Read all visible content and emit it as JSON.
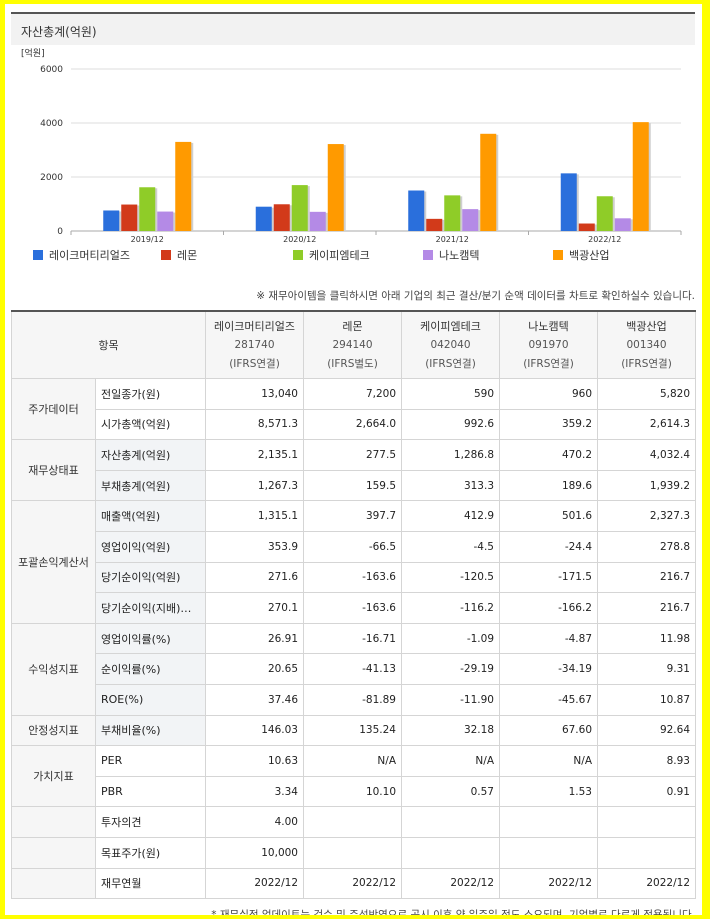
{
  "chart_title": "자산총계(억원)",
  "chart_data": {
    "type": "bar",
    "unit_label": "[억원]",
    "categories": [
      "2019/12",
      "2020/12",
      "2021/12",
      "2022/12"
    ],
    "ylim": [
      0,
      6000
    ],
    "yticks": [
      "6000",
      "4000",
      "2000",
      "0"
    ],
    "series": [
      {
        "name": "레이크머티리얼즈",
        "color": "#2a6fdc",
        "values": [
          760,
          900,
          1500,
          2135
        ]
      },
      {
        "name": "레몬",
        "color": "#d23a1a",
        "values": [
          980,
          990,
          450,
          277
        ]
      },
      {
        "name": "케이피엠테크",
        "color": "#8fcc28",
        "values": [
          1620,
          1700,
          1320,
          1287
        ]
      },
      {
        "name": "나노캠텍",
        "color": "#b48ae6",
        "values": [
          720,
          710,
          810,
          470
        ]
      },
      {
        "name": "백광산업",
        "color": "#ff9a00",
        "values": [
          3300,
          3220,
          3600,
          4032
        ]
      }
    ]
  },
  "notice": "※ 재무아이템을 클릭하시면 아래 기업의 최근 결산/분기 순액 데이터를 차트로 확인하실수 있습니다.",
  "table": {
    "item_header": "항목",
    "companies": [
      {
        "name": "레이크머티리얼즈",
        "code": "281740",
        "type": "(IFRS연결)"
      },
      {
        "name": "레몬",
        "code": "294140",
        "type": "(IFRS별도)"
      },
      {
        "name": "케이피엠테크",
        "code": "042040",
        "type": "(IFRS연결)"
      },
      {
        "name": "나노캠텍",
        "code": "091970",
        "type": "(IFRS연결)"
      },
      {
        "name": "백광산업",
        "code": "001340",
        "type": "(IFRS연결)"
      }
    ],
    "rows": [
      {
        "group": "주가데이터",
        "span": 2,
        "label": "전일종가(원)",
        "values": [
          "13,040",
          "7,200",
          "590",
          "960",
          "5,820"
        ]
      },
      {
        "label": "시가총액(억원)",
        "values": [
          "8,571.3",
          "2,664.0",
          "992.6",
          "359.2",
          "2,614.3"
        ]
      },
      {
        "group": "재무상태표",
        "span": 2,
        "label": "자산총계(억원)",
        "shaded": true,
        "values": [
          "2,135.1",
          "277.5",
          "1,286.8",
          "470.2",
          "4,032.4"
        ]
      },
      {
        "label": "부채총계(억원)",
        "shaded": true,
        "values": [
          "1,267.3",
          "159.5",
          "313.3",
          "189.6",
          "1,939.2"
        ]
      },
      {
        "group": "포괄손익계산서",
        "span": 4,
        "label": "매출액(억원)",
        "shaded": true,
        "values": [
          "1,315.1",
          "397.7",
          "412.9",
          "501.6",
          "2,327.3"
        ]
      },
      {
        "label": "영업이익(억원)",
        "shaded": true,
        "values": [
          "353.9",
          "-66.5",
          "-4.5",
          "-24.4",
          "278.8"
        ]
      },
      {
        "label": "당기순이익(억원)",
        "shaded": true,
        "values": [
          "271.6",
          "-163.6",
          "-120.5",
          "-171.5",
          "216.7"
        ]
      },
      {
        "label": "당기순이익(지배)…",
        "shaded": true,
        "values": [
          "270.1",
          "-163.6",
          "-116.2",
          "-166.2",
          "216.7"
        ]
      },
      {
        "group": "수익성지표",
        "span": 3,
        "label": "영업이익률(%)",
        "shaded": true,
        "values": [
          "26.91",
          "-16.71",
          "-1.09",
          "-4.87",
          "11.98"
        ]
      },
      {
        "label": "순이익률(%)",
        "shaded": true,
        "values": [
          "20.65",
          "-41.13",
          "-29.19",
          "-34.19",
          "9.31"
        ]
      },
      {
        "label": "ROE(%)",
        "shaded": true,
        "values": [
          "37.46",
          "-81.89",
          "-11.90",
          "-45.67",
          "10.87"
        ]
      },
      {
        "group": "안정성지표",
        "span": 1,
        "label": "부채비율(%)",
        "shaded": true,
        "values": [
          "146.03",
          "135.24",
          "32.18",
          "67.60",
          "92.64"
        ]
      },
      {
        "group": "가치지표",
        "span": 2,
        "label": "PER",
        "values": [
          "10.63",
          "N/A",
          "N/A",
          "N/A",
          "8.93"
        ]
      },
      {
        "label": "PBR",
        "values": [
          "3.34",
          "10.10",
          "0.57",
          "1.53",
          "0.91"
        ]
      },
      {
        "group": "",
        "span": 1,
        "label": "투자의견",
        "values": [
          "4.00",
          "",
          "",
          "",
          ""
        ]
      },
      {
        "group": "",
        "span": 1,
        "label": "목표주가(원)",
        "values": [
          "10,000",
          "",
          "",
          "",
          ""
        ]
      },
      {
        "group": "",
        "span": 1,
        "label": "재무연월",
        "values": [
          "2022/12",
          "2022/12",
          "2022/12",
          "2022/12",
          "2022/12"
        ]
      }
    ]
  },
  "footnote": "* 재무실적 업데이트는 검수 및 주석반영으로 공시 이후 약 일주일 정도 소요되며, 기업별로 다르게 적용됩니다."
}
